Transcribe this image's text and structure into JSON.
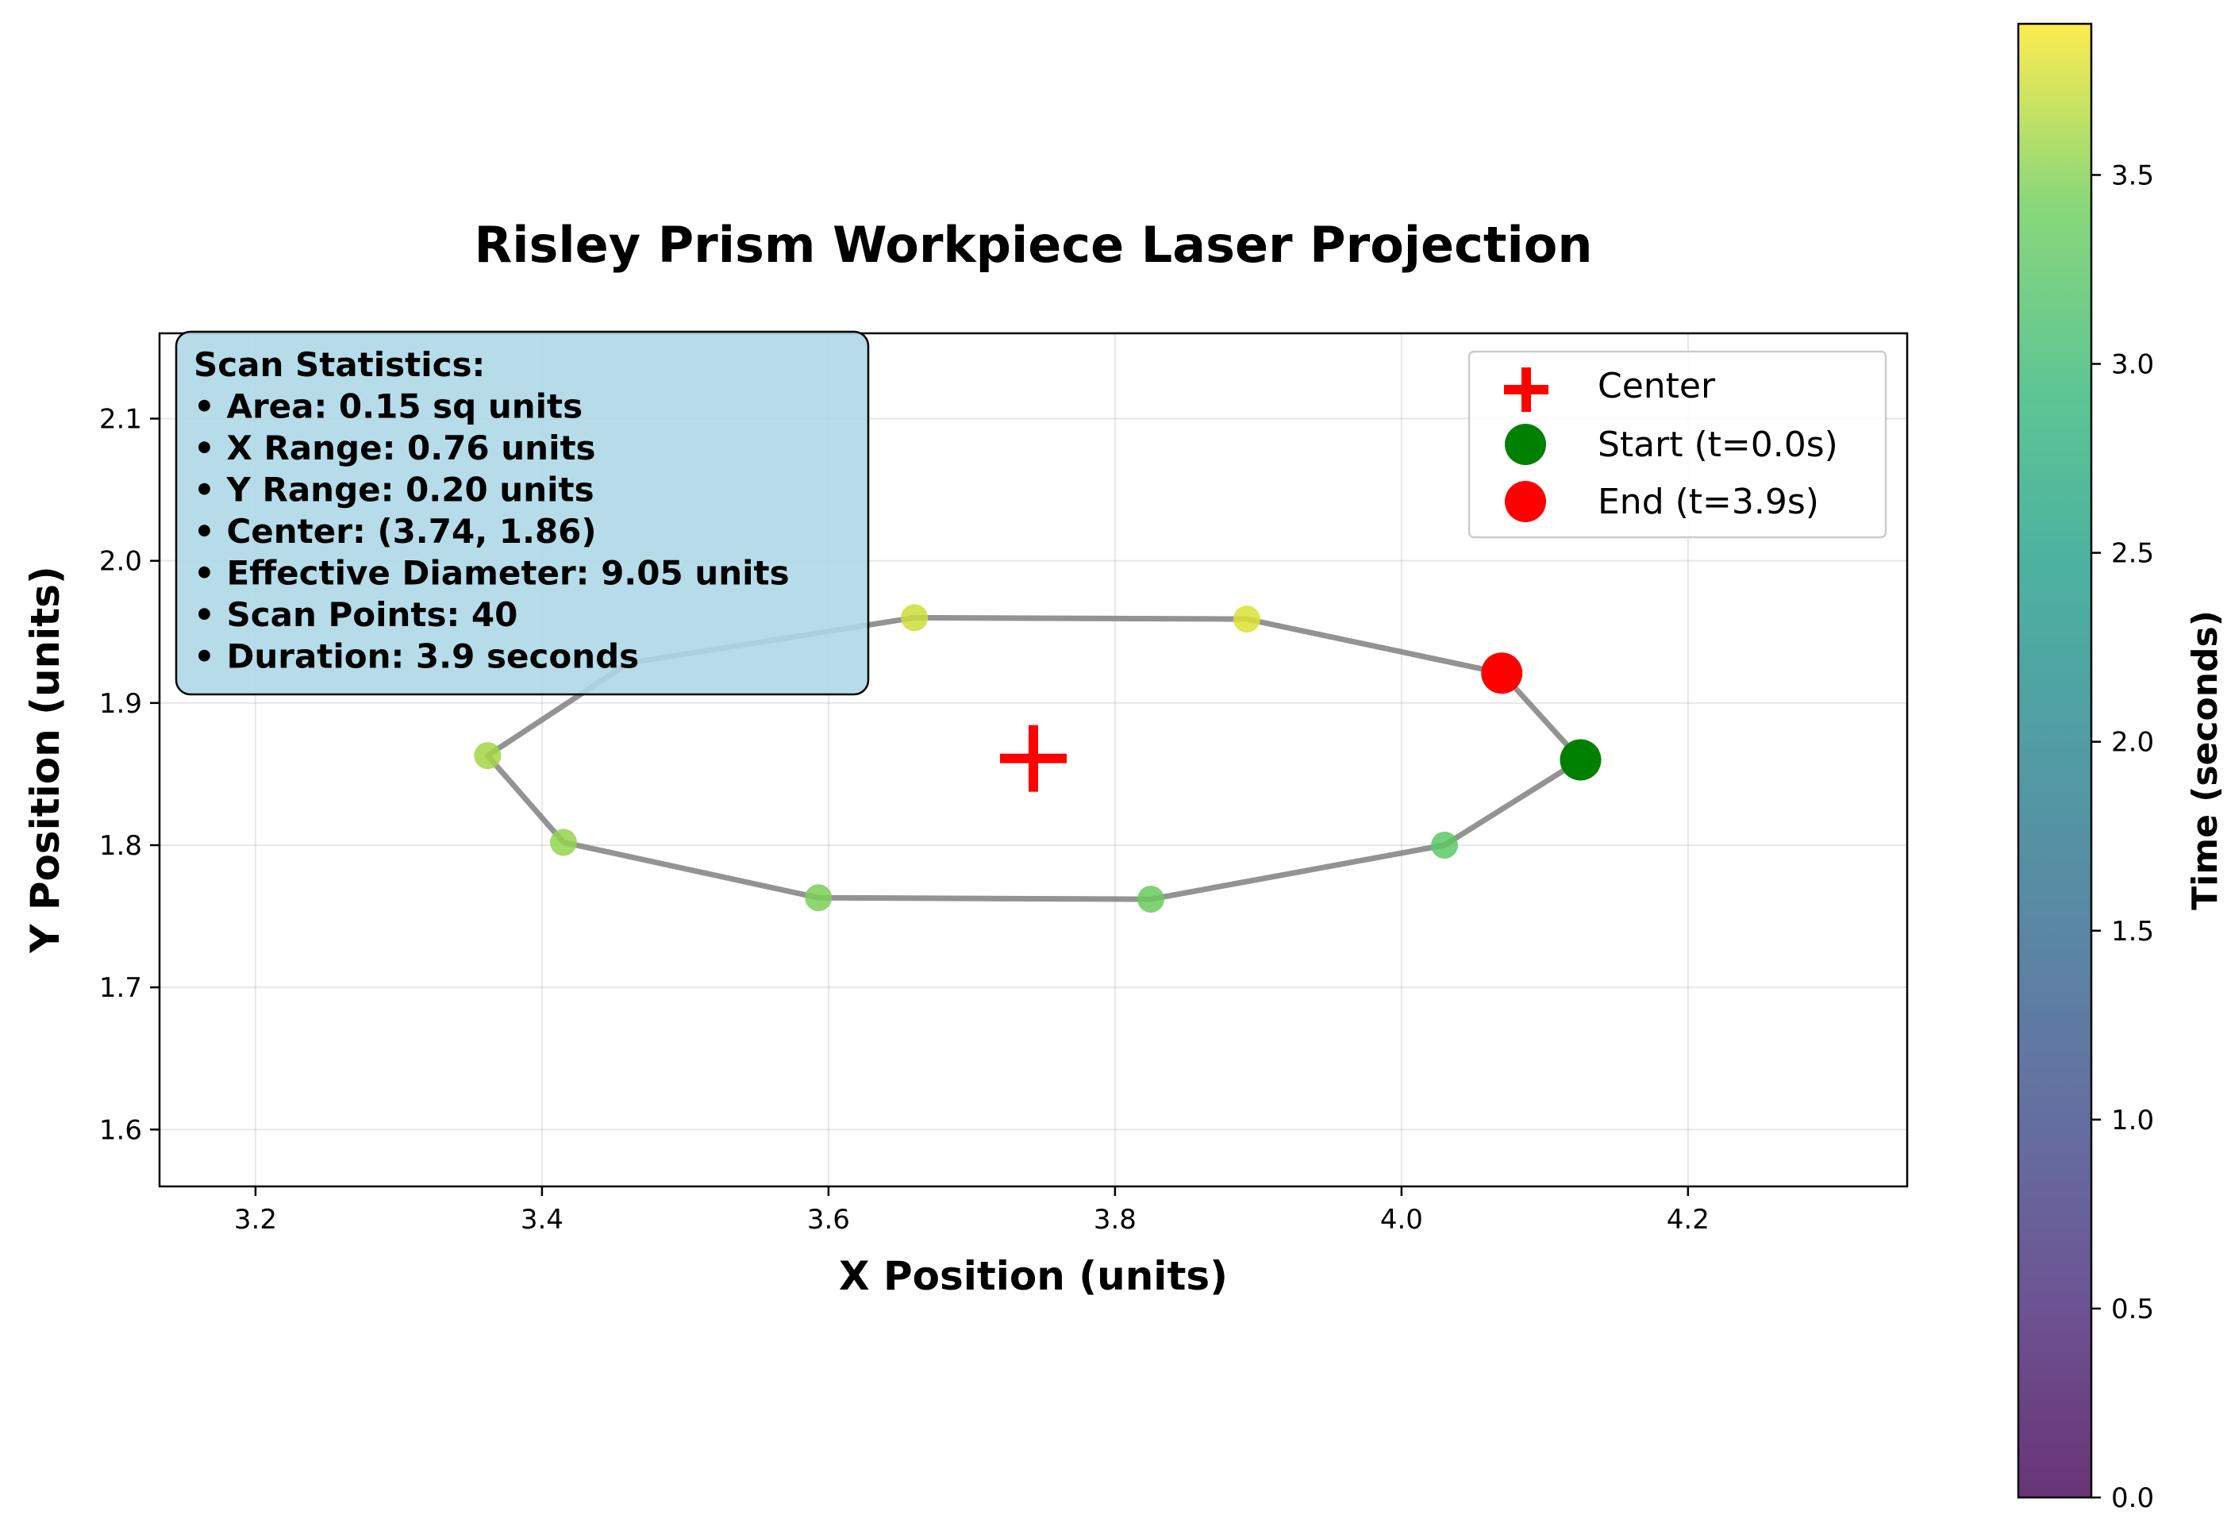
{
  "chart_data": {
    "type": "scatter",
    "title": "Risley Prism Workpiece Laser Projection",
    "xlabel": "X Position (units)",
    "ylabel": "Y Position (units)",
    "xlim": [
      3.133,
      3.353
    ],
    "xlim_full": [
      3.133,
      4.353
    ],
    "ylim": [
      1.56,
      2.16
    ],
    "x_ticks": [
      "3.2",
      "3.4",
      "3.6",
      "3.8",
      "4.0",
      "4.2"
    ],
    "x_tick_values": [
      3.2,
      3.4,
      3.6,
      3.8,
      4.0,
      4.2
    ],
    "y_ticks": [
      "1.6",
      "1.7",
      "1.8",
      "1.9",
      "2.0",
      "2.1"
    ],
    "y_tick_values": [
      1.6,
      1.7,
      1.8,
      1.9,
      2.0,
      2.1
    ],
    "grid": true,
    "path": [
      {
        "x": 4.125,
        "y": 1.86
      },
      {
        "x": 4.03,
        "y": 1.8
      },
      {
        "x": 3.825,
        "y": 1.762
      },
      {
        "x": 3.593,
        "y": 1.763
      },
      {
        "x": 3.415,
        "y": 1.802
      },
      {
        "x": 3.362,
        "y": 1.863
      },
      {
        "x": 3.46,
        "y": 1.928
      },
      {
        "x": 3.66,
        "y": 1.96
      },
      {
        "x": 3.892,
        "y": 1.959
      },
      {
        "x": 4.07,
        "y": 1.921
      },
      {
        "x": 4.125,
        "y": 1.86
      }
    ],
    "points": [
      {
        "x": 4.03,
        "y": 1.8,
        "t": 2.9
      },
      {
        "x": 3.825,
        "y": 1.762,
        "t": 3.0
      },
      {
        "x": 3.593,
        "y": 1.763,
        "t": 3.1
      },
      {
        "x": 3.415,
        "y": 1.802,
        "t": 3.25
      },
      {
        "x": 3.362,
        "y": 1.863,
        "t": 3.35
      },
      {
        "x": 3.66,
        "y": 1.96,
        "t": 3.6
      },
      {
        "x": 3.892,
        "y": 1.959,
        "t": 3.7
      }
    ],
    "center": {
      "x": 3.743,
      "y": 1.861
    },
    "start": {
      "x": 4.125,
      "y": 1.86
    },
    "end": {
      "x": 4.07,
      "y": 1.921
    },
    "legend": {
      "placement": "upper right",
      "entries": [
        "Center",
        "Start (t=0.0s)",
        "End (t=3.9s)"
      ]
    },
    "colorbar": {
      "label": "Time (seconds)",
      "range": [
        0,
        3.9
      ],
      "ticks": [
        "0.0",
        "0.5",
        "1.0",
        "1.5",
        "2.0",
        "2.5",
        "3.0",
        "3.5"
      ],
      "tick_values": [
        0.0,
        0.5,
        1.0,
        1.5,
        2.0,
        2.5,
        3.0,
        3.5
      ],
      "colormap": "viridis"
    },
    "stats_box": {
      "lines": [
        "Scan Statistics:",
        "• Area: 0.15 sq units",
        "• X Range: 0.76 units",
        "• Y Range: 0.20 units",
        "• Center: (3.74, 1.86)",
        "• Effective Diameter: 9.05 units",
        "• Scan Points: 40",
        "• Duration: 3.9 seconds"
      ]
    },
    "colors": {
      "path": "#808080",
      "center": "#ff0000",
      "start": "#008000",
      "end": "#ff0000",
      "stats_box_bg": "#add8e6"
    }
  }
}
